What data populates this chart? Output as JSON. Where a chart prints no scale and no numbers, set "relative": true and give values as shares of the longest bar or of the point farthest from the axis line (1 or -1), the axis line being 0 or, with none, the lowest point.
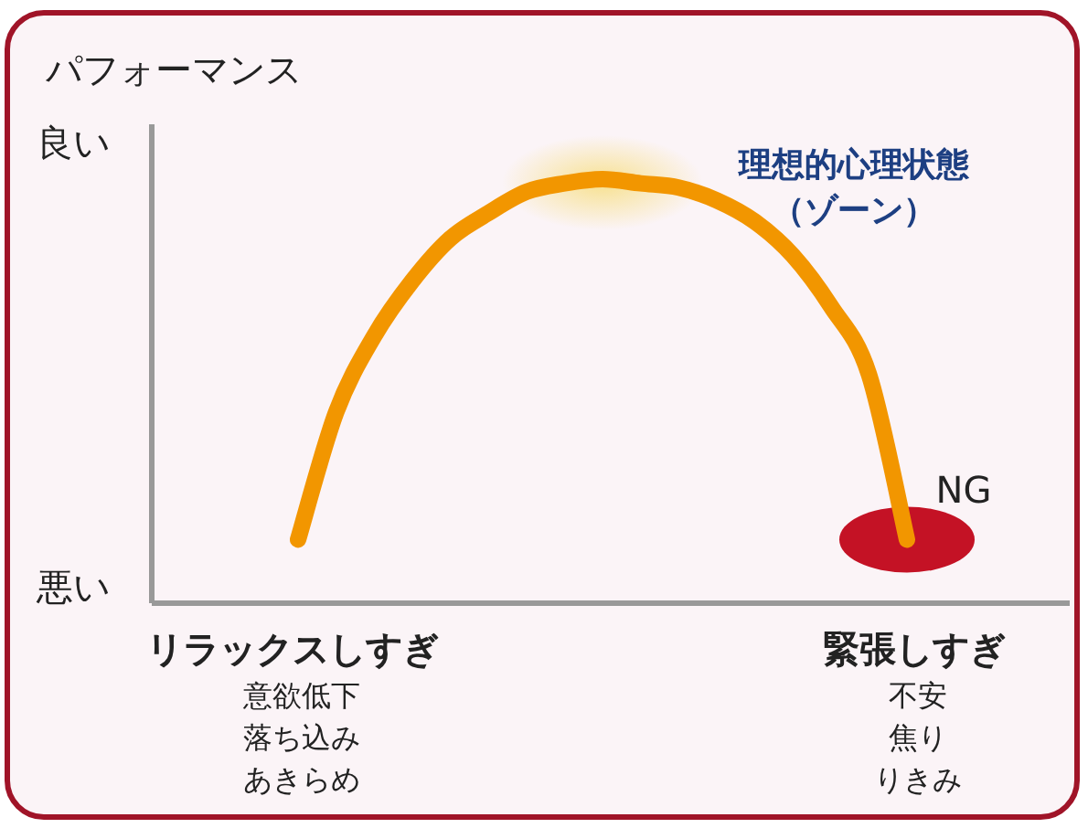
{
  "chart_data": {
    "type": "line",
    "title": "パフォーマンス",
    "relative": true,
    "categories": [
      null,
      null,
      null,
      null,
      null,
      null,
      null,
      null,
      null,
      null,
      null,
      null,
      null,
      null,
      null,
      null,
      null
    ],
    "values": [
      0.15,
      0.45,
      0.63,
      0.76,
      0.86,
      0.92,
      0.97,
      0.99,
      1,
      0.99,
      0.98,
      0.95,
      0.9,
      0.82,
      0.7,
      0.54,
      0.15
    ],
    "color": "#f29600",
    "marker": "none",
    "line_style": "solid",
    "annotations": [
      "良い",
      "悪い",
      "リラックスしすぎ",
      "意欲低下",
      "落ち込み",
      "あきらめ",
      "緊張しすぎ",
      "不安",
      "焦り",
      "りきみ",
      "理想的心理状態",
      "（ゾーン）",
      "NG"
    ]
  }
}
